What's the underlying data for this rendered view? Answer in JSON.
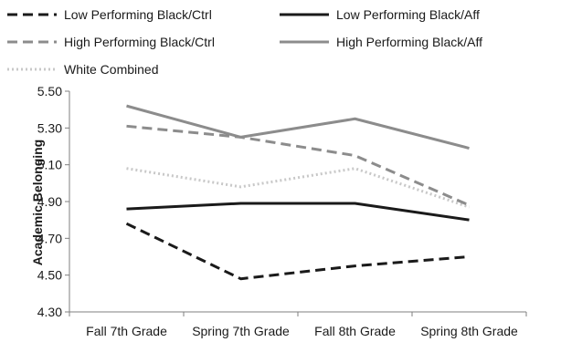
{
  "chart_data": {
    "type": "line",
    "title": "",
    "xlabel": "",
    "ylabel": "Academic Belonging",
    "categories": [
      "Fall 7th Grade",
      "Spring 7th Grade",
      "Fall 8th Grade",
      "Spring 8th Grade"
    ],
    "ylim": [
      4.3,
      5.5
    ],
    "yticks": [
      "4.30",
      "4.50",
      "4.70",
      "4.90",
      "5.10",
      "5.30",
      "5.50"
    ],
    "grid": false,
    "legend_position": "top",
    "series": [
      {
        "name": "Low Performing Black/Ctrl",
        "values": [
          4.78,
          4.48,
          4.55,
          4.6
        ],
        "color": "#1a1a1a",
        "style": "dashed"
      },
      {
        "name": "Low Performing Black/Aff",
        "values": [
          4.86,
          4.89,
          4.89,
          4.8
        ],
        "color": "#1a1a1a",
        "style": "solid"
      },
      {
        "name": "High Performing Black/Ctrl",
        "values": [
          5.31,
          5.25,
          5.15,
          4.88
        ],
        "color": "#8c8c8c",
        "style": "dashed"
      },
      {
        "name": "High Performing Black/Aff",
        "values": [
          5.42,
          5.25,
          5.35,
          5.19
        ],
        "color": "#8c8c8c",
        "style": "solid"
      },
      {
        "name": "White Combined",
        "values": [
          5.08,
          4.98,
          5.08,
          4.87
        ],
        "color": "#c8c8c8",
        "style": "dotted"
      }
    ]
  }
}
